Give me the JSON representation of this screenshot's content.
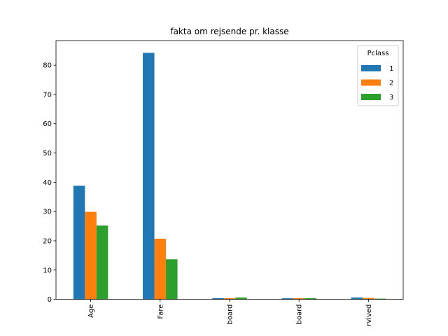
{
  "chart_data": {
    "type": "bar",
    "title": "fakta om rejsende pr. klasse",
    "xlabel": "",
    "ylabel": "",
    "categories": [
      "Age",
      "Fare",
      "Siblings/Spouses Aboard",
      "Parents/Children Aboard",
      "Survived"
    ],
    "category_tick_labels": [
      "Age",
      "Fare",
      "board",
      "board",
      "rvived"
    ],
    "series": [
      {
        "name": "1",
        "color": "#1f77b4",
        "values": [
          38.8,
          84.2,
          0.42,
          0.36,
          0.63
        ]
      },
      {
        "name": "2",
        "color": "#ff7f0e",
        "values": [
          29.9,
          20.7,
          0.4,
          0.38,
          0.47
        ]
      },
      {
        "name": "3",
        "color": "#2ca02c",
        "values": [
          25.2,
          13.7,
          0.62,
          0.4,
          0.24
        ]
      }
    ],
    "ylim": [
      0,
      88.4
    ],
    "yticks": [
      0,
      10,
      20,
      30,
      40,
      50,
      60,
      70,
      80
    ],
    "grid": false,
    "legend": {
      "title": "Pclass",
      "position": "top-right"
    }
  }
}
